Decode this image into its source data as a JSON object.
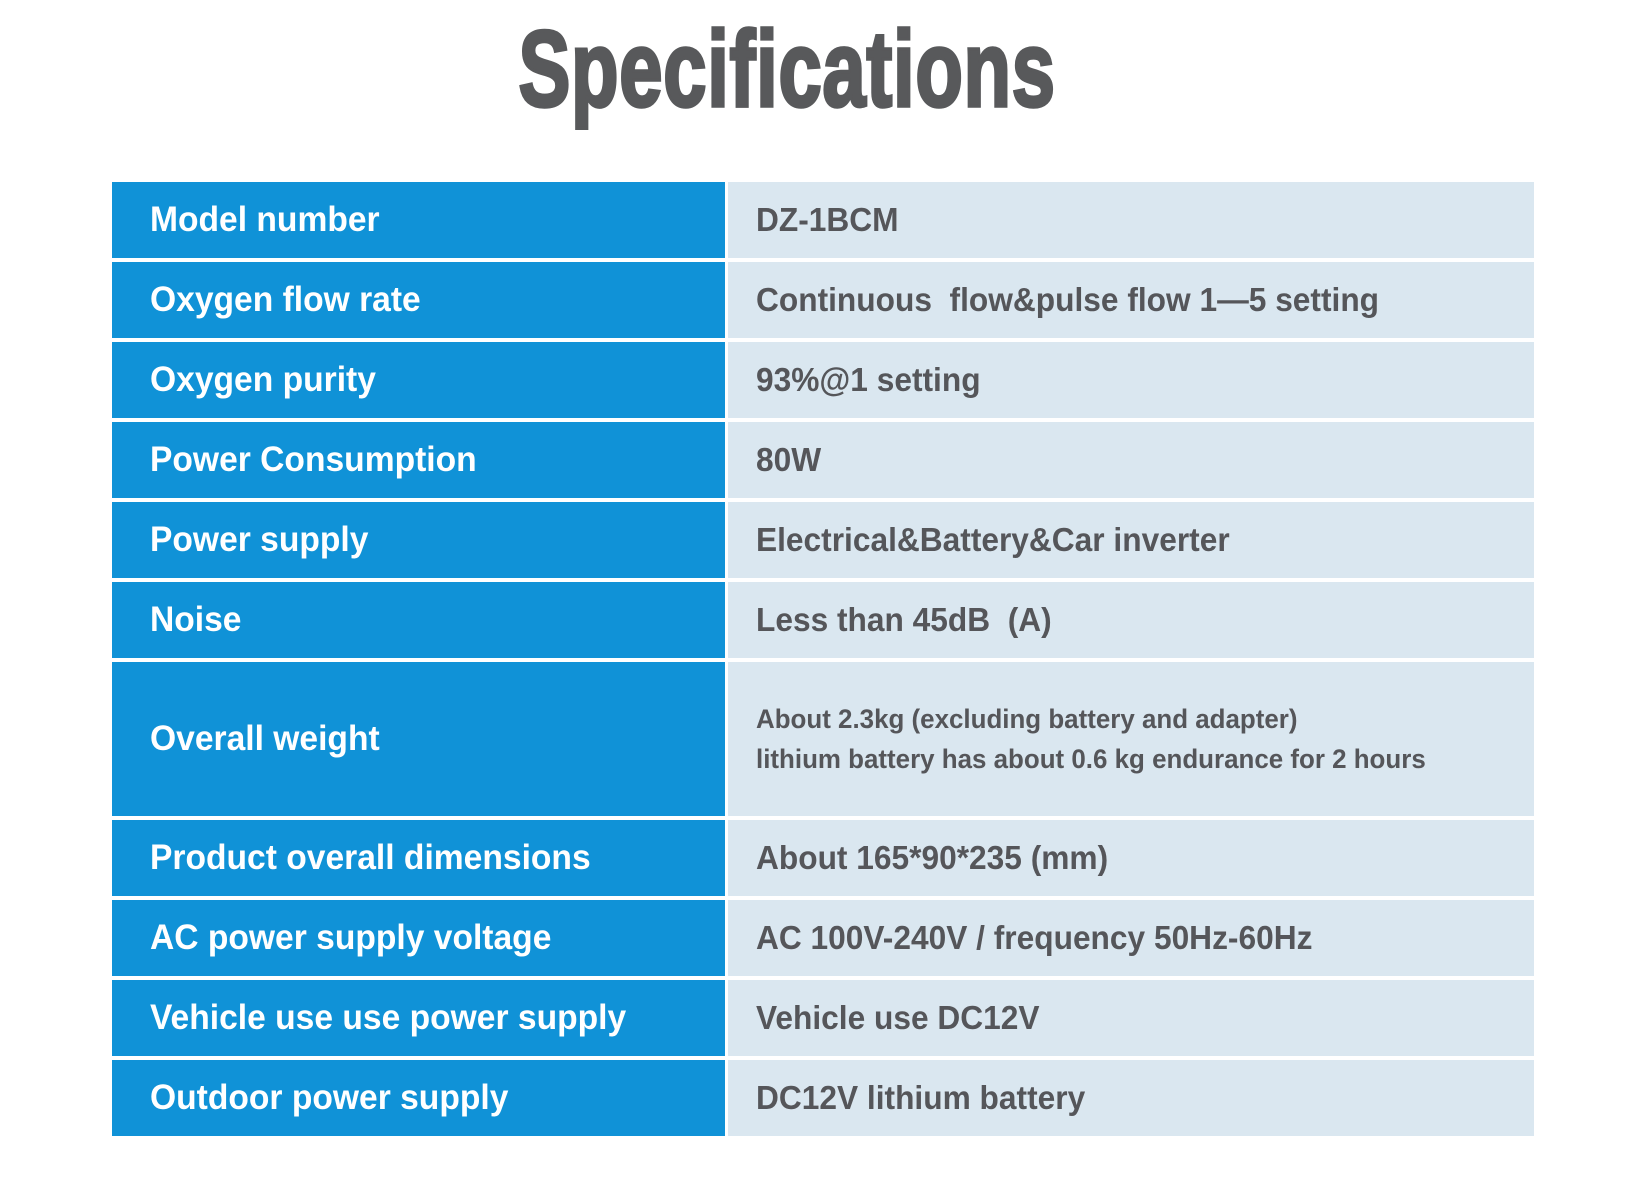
{
  "title": "Specifications",
  "colors": {
    "label_column_bg": "#1092d7",
    "value_column_bg": "#dae7f0",
    "label_text": "#ffffff",
    "value_text": "#55565a",
    "title_text": "#58595b",
    "page_bg": "#ffffff"
  },
  "table": {
    "rows": [
      {
        "label": "Model number",
        "value": "DZ-1BCM"
      },
      {
        "label": "Oxygen flow rate",
        "value": "Continuous  flow&pulse flow 1—5 setting"
      },
      {
        "label": "Oxygen purity",
        "value": "93%@1 setting"
      },
      {
        "label": "Power Consumption",
        "value": "80W"
      },
      {
        "label": "Power supply",
        "value": "Electrical&Battery&Car inverter"
      },
      {
        "label": "Noise",
        "value": "Less than 45dB  (A)"
      },
      {
        "label": "Overall weight",
        "value_lines": [
          "About 2.3kg (excluding battery and adapter)",
          "lithium battery has about 0.6 kg endurance for 2 hours"
        ],
        "tall": true
      },
      {
        "label": "Product overall dimensions",
        "value": "About 165*90*235 (mm)"
      },
      {
        "label": "AC power supply voltage",
        "value": "AC 100V-240V / frequency 50Hz-60Hz"
      },
      {
        "label": "Vehicle use use power supply",
        "value": "Vehicle use DC12V"
      },
      {
        "label": "Outdoor power supply",
        "value": "DC12V lithium battery"
      }
    ]
  }
}
